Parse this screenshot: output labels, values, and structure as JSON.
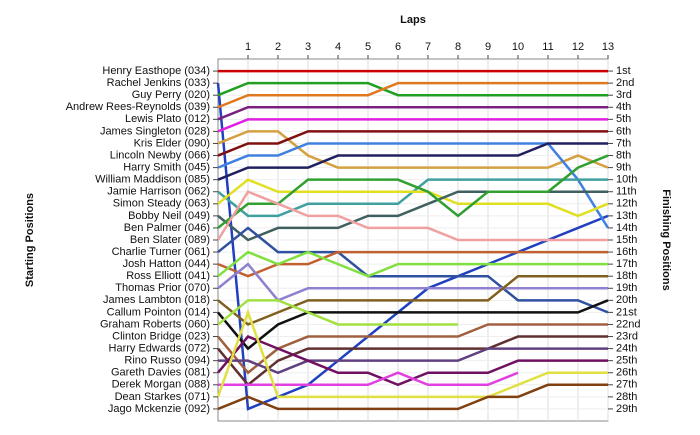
{
  "chart_data": {
    "type": "lap",
    "title": "Laps",
    "y_label_left": "Starting Positions",
    "y_label_right": "Finishing Positions",
    "x": [
      0,
      1,
      2,
      3,
      4,
      5,
      6,
      7,
      8,
      9,
      10,
      11,
      12,
      13
    ],
    "xlim": [
      0,
      13
    ],
    "xticks": [
      1,
      2,
      3,
      4,
      5,
      6,
      7,
      8,
      9,
      10,
      11,
      12,
      13
    ],
    "ylim": [
      0,
      30
    ],
    "yticks": [
      {
        "value": 1,
        "label": "1st"
      },
      {
        "value": 2,
        "label": "2nd"
      },
      {
        "value": 3,
        "label": "3rd"
      },
      {
        "value": 4,
        "label": "4th"
      },
      {
        "value": 5,
        "label": "5th"
      },
      {
        "value": 6,
        "label": "6th"
      },
      {
        "value": 7,
        "label": "7th"
      },
      {
        "value": 8,
        "label": "8th"
      },
      {
        "value": 9,
        "label": "9th"
      },
      {
        "value": 10,
        "label": "10th"
      },
      {
        "value": 11,
        "label": "11th"
      },
      {
        "value": 12,
        "label": "12th"
      },
      {
        "value": 13,
        "label": "13th"
      },
      {
        "value": 14,
        "label": "14th"
      },
      {
        "value": 15,
        "label": "15th"
      },
      {
        "value": 16,
        "label": "16th"
      },
      {
        "value": 17,
        "label": "17th"
      },
      {
        "value": 18,
        "label": "18th"
      },
      {
        "value": 19,
        "label": "19th"
      },
      {
        "value": 20,
        "label": "20th"
      },
      {
        "value": 21,
        "label": "21st"
      },
      {
        "value": 22,
        "label": "22nd"
      },
      {
        "value": 23,
        "label": "23rd"
      },
      {
        "value": 24,
        "label": "24th"
      },
      {
        "value": 25,
        "label": "25th"
      },
      {
        "value": 26,
        "label": "26th"
      },
      {
        "value": 27,
        "label": "27th"
      },
      {
        "value": 28,
        "label": "28th"
      },
      {
        "value": 29,
        "label": "29th"
      }
    ],
    "grid": true,
    "series": [
      {
        "name": "Henry Easthope (034)",
        "color": "#cc0000",
        "values": [
          1,
          1,
          1,
          1,
          1,
          1,
          1,
          1,
          1,
          1,
          1,
          1,
          1,
          1
        ]
      },
      {
        "name": "Rachel Jenkins (033)",
        "color": "#2040c0",
        "values": [
          2,
          29,
          28,
          27,
          25,
          23,
          21,
          19,
          18,
          17,
          16,
          15,
          14,
          13
        ]
      },
      {
        "name": "Guy Perry (020)",
        "color": "#20a020",
        "values": [
          3,
          2,
          2,
          2,
          2,
          2,
          3,
          3,
          3,
          3,
          3,
          3,
          3,
          3
        ]
      },
      {
        "name": "Andrew Rees-Reynolds (039)",
        "color": "#e07820",
        "values": [
          4,
          3,
          3,
          3,
          3,
          3,
          2,
          2,
          2,
          2,
          2,
          2,
          2,
          2
        ]
      },
      {
        "name": "Lewis Plato (012)",
        "color": "#7a2080",
        "values": [
          5,
          4,
          4,
          4,
          4,
          4,
          4,
          4,
          4,
          4,
          4,
          4,
          4,
          4
        ]
      },
      {
        "name": "James Singleton (028)",
        "color": "#e020e0",
        "values": [
          6,
          5,
          5,
          5,
          5,
          5,
          5,
          5,
          5,
          5,
          5,
          5,
          5,
          5
        ]
      },
      {
        "name": "Kris Elder (090)",
        "color": "#d4a040",
        "values": [
          7,
          6,
          6,
          8,
          9,
          9,
          9,
          9,
          9,
          9,
          9,
          9,
          8,
          9
        ]
      },
      {
        "name": "Lincoln Newby (066)",
        "color": "#801010",
        "values": [
          8,
          7,
          7,
          6,
          6,
          6,
          6,
          6,
          6,
          6,
          6,
          6,
          6,
          6
        ]
      },
      {
        "name": "Harry Smith (045)",
        "color": "#4080e0",
        "values": [
          9,
          8,
          8,
          7,
          7,
          7,
          7,
          7,
          7,
          7,
          7,
          7,
          10,
          14
        ]
      },
      {
        "name": "William Maddison (085)",
        "color": "#202060",
        "values": [
          10,
          9,
          9,
          9,
          8,
          8,
          8,
          8,
          8,
          8,
          8,
          7,
          7,
          7
        ]
      },
      {
        "name": "Jamie Harrison (062)",
        "color": "#40a0a0",
        "values": [
          11,
          13,
          13,
          12,
          12,
          12,
          12,
          10,
          10,
          10,
          10,
          10,
          10,
          10
        ]
      },
      {
        "name": "Simon Steady (063)",
        "color": "#e0e020",
        "values": [
          12,
          10,
          11,
          11,
          11,
          11,
          11,
          11,
          12,
          12,
          12,
          12,
          13,
          12
        ]
      },
      {
        "name": "Bobby Neil (049)",
        "color": "#406060",
        "values": [
          13,
          15,
          14,
          14,
          14,
          13,
          13,
          12,
          11,
          11,
          11,
          11,
          11,
          11
        ]
      },
      {
        "name": "Ben Palmer (046)",
        "color": "#30a030",
        "values": [
          14,
          12,
          12,
          10,
          10,
          10,
          10,
          11,
          13,
          11,
          11,
          11,
          9,
          8
        ]
      },
      {
        "name": "Ben Slater (089)",
        "color": "#f0a0a0",
        "values": [
          15,
          11,
          12,
          13,
          13,
          14,
          14,
          14,
          15,
          15,
          15,
          15,
          15,
          15
        ]
      },
      {
        "name": "Charlie Turner (061)",
        "color": "#3050a0",
        "values": [
          16,
          14,
          16,
          16,
          16,
          18,
          18,
          18,
          18,
          18,
          20,
          20,
          20,
          21
        ]
      },
      {
        "name": "Josh Hatton (044)",
        "color": "#c06030",
        "values": [
          17,
          18,
          17,
          17,
          16,
          16,
          16,
          16,
          16,
          16,
          16,
          16,
          16,
          16
        ]
      },
      {
        "name": "Ross Elliott (041)",
        "color": "#80e040",
        "values": [
          18,
          16,
          17,
          16,
          17,
          18,
          17,
          17,
          17,
          17,
          17,
          17,
          17,
          17
        ]
      },
      {
        "name": "Thomas Prior (070)",
        "color": "#9080d0",
        "values": [
          19,
          17,
          20,
          19,
          19,
          19,
          19,
          19,
          19,
          19,
          19,
          19,
          19,
          19
        ]
      },
      {
        "name": "James Lambton (018)",
        "color": "#806020",
        "values": [
          20,
          22,
          21,
          20,
          20,
          20,
          20,
          20,
          20,
          20,
          18,
          18,
          18,
          18
        ]
      },
      {
        "name": "Callum Pointon (014)",
        "color": "#101010",
        "values": [
          21,
          24,
          22,
          21,
          21,
          21,
          21,
          21,
          21,
          21,
          21,
          21,
          21,
          20
        ]
      },
      {
        "name": "Graham Roberts (060)",
        "color": "#a0e040",
        "values": [
          22,
          20,
          20,
          21,
          22,
          22,
          22,
          22,
          22,
          null,
          null,
          null,
          null,
          null
        ]
      },
      {
        "name": "Clinton Bridge (023)",
        "color": "#a06040",
        "values": [
          23,
          26,
          24,
          23,
          23,
          23,
          23,
          23,
          23,
          22,
          22,
          22,
          22,
          22
        ]
      },
      {
        "name": "Harry Edwards (072)",
        "color": "#603030",
        "values": [
          24,
          27,
          25,
          24,
          24,
          24,
          24,
          24,
          24,
          24,
          23,
          23,
          23,
          23
        ]
      },
      {
        "name": "Rino Russo (094)",
        "color": "#604080",
        "values": [
          25,
          25,
          26,
          25,
          25,
          25,
          25,
          25,
          25,
          24,
          24,
          24,
          24,
          24
        ]
      },
      {
        "name": "Gareth Davies (081)",
        "color": "#701060",
        "values": [
          26,
          23,
          24,
          25,
          26,
          26,
          27,
          26,
          26,
          26,
          25,
          25,
          25,
          25
        ]
      },
      {
        "name": "Derek Morgan (088)",
        "color": "#e040e0",
        "values": [
          27,
          27,
          27,
          27,
          27,
          27,
          26,
          27,
          27,
          27,
          26,
          null,
          null,
          null
        ]
      },
      {
        "name": "Dean Starkes (071)",
        "color": "#e0e040",
        "values": [
          28,
          21,
          28,
          28,
          28,
          28,
          28,
          28,
          28,
          28,
          27,
          26,
          26,
          26
        ]
      },
      {
        "name": "Jago Mckenzie (092)",
        "color": "#804010",
        "values": [
          29,
          28,
          29,
          29,
          29,
          29,
          29,
          29,
          29,
          28,
          28,
          27,
          27,
          27
        ]
      }
    ]
  }
}
